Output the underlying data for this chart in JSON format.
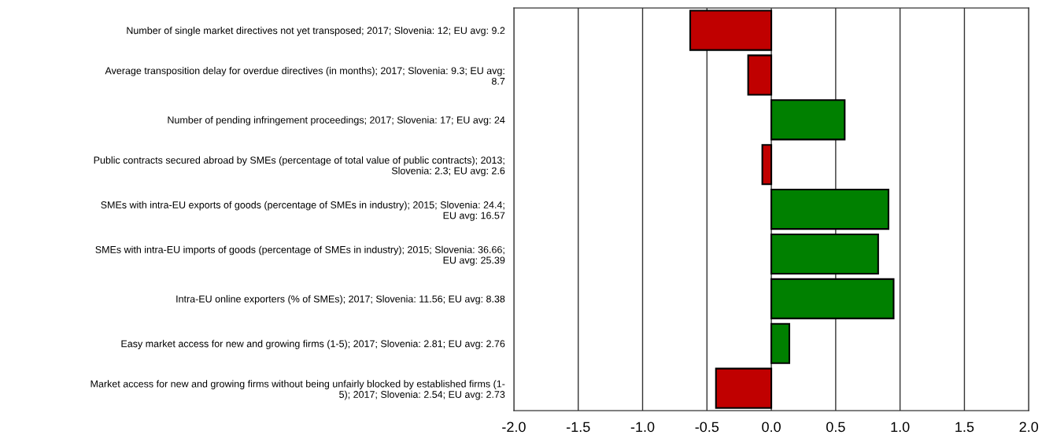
{
  "chart_data": {
    "type": "bar",
    "orientation": "horizontal",
    "categories": [
      "Number of single market directives not yet transposed; 2017; Slovenia: 12; EU avg: 9.2",
      "Average transposition delay for overdue directives (in months); 2017; Slovenia: 9.3; EU avg:\n8.7",
      "Number of pending infringement proceedings; 2017; Slovenia: 17; EU avg: 24",
      "Public contracts secured abroad by SMEs (percentage of total value of public contracts); 2013;\nSlovenia: 2.3; EU avg: 2.6",
      "SMEs with intra-EU exports of goods (percentage of SMEs in industry); 2015; Slovenia: 24.4;\nEU avg: 16.57",
      "SMEs with intra-EU imports of goods (percentage of SMEs in industry); 2015; Slovenia: 36.66;\nEU avg: 25.39",
      "Intra-EU online exporters (% of SMEs); 2017; Slovenia: 11.56; EU avg: 8.38",
      "Easy market access for new and growing firms (1-5); 2017; Slovenia: 2.81; EU avg: 2.76",
      "Market access for new and growing firms without being unfairly blocked by established firms (1-\n5); 2017; Slovenia: 2.54; EU avg: 2.73"
    ],
    "values": [
      -0.63,
      -0.18,
      0.57,
      -0.07,
      0.91,
      0.83,
      0.95,
      0.14,
      -0.43
    ],
    "colors": [
      "#c00000",
      "#c00000",
      "#008000",
      "#c00000",
      "#008000",
      "#008000",
      "#008000",
      "#008000",
      "#c00000"
    ],
    "xlim": [
      -2.0,
      2.0
    ],
    "xticks": [
      {
        "value": -2.0,
        "label": "-2.0"
      },
      {
        "value": -1.5,
        "label": "-1.5"
      },
      {
        "value": -1.0,
        "label": "-1.0"
      },
      {
        "value": -0.5,
        "label": "-0.5"
      },
      {
        "value": 0.0,
        "label": "0.0"
      },
      {
        "value": 0.5,
        "label": "0.5"
      },
      {
        "value": 1.0,
        "label": "1.0"
      },
      {
        "value": 1.5,
        "label": "1.5"
      },
      {
        "value": 2.0,
        "label": "2.0"
      }
    ],
    "grid": "x",
    "legend": false
  }
}
